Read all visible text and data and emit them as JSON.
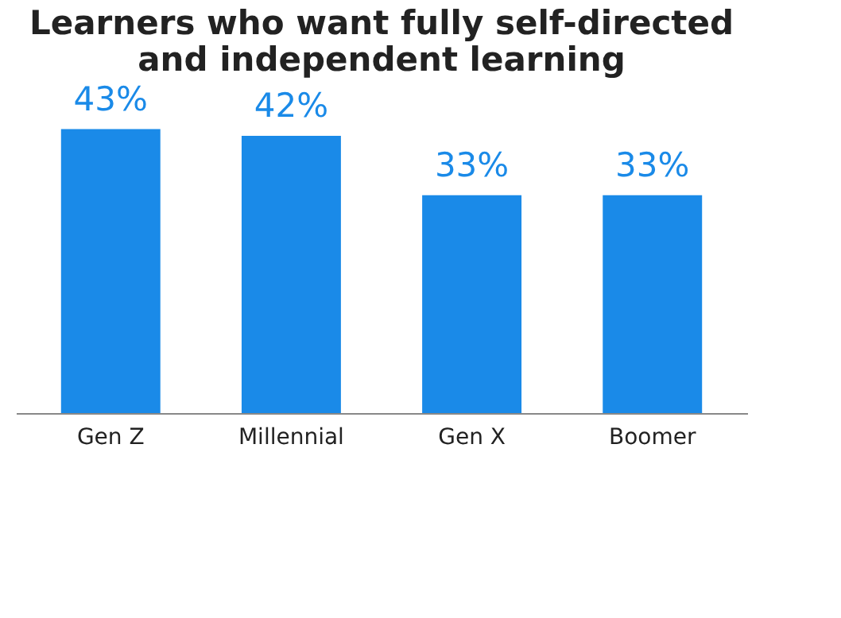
{
  "chart_data": {
    "type": "bar",
    "title": [
      "Learners who want fully self-directed",
      "and independent learning"
    ],
    "categories": [
      "Gen Z",
      "Millennial",
      "Gen X",
      "Boomer"
    ],
    "values": [
      43,
      42,
      33,
      33
    ],
    "value_labels": [
      "43%",
      "42%",
      "33%",
      "33%"
    ],
    "color": "#1a8ae8",
    "tick_labels": "x"
  }
}
